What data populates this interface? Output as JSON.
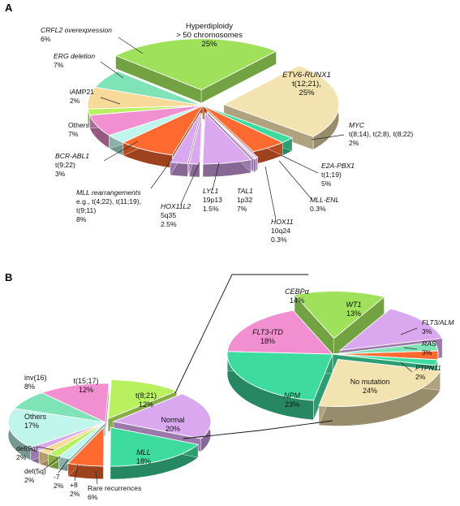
{
  "panels": [
    {
      "letter": "A"
    },
    {
      "letter": "B"
    }
  ],
  "colors": {
    "green": "#9fe15a",
    "yellow": "#f3e3b0",
    "teal": "#3ddc9e",
    "orange": "#ff6a30",
    "lilac": "#d9a8ef",
    "pink": "#f28fd0",
    "aqua": "#bff5ea",
    "mint": "#7fe3b7",
    "lime": "#b9f05f",
    "peach": "#f7d999"
  },
  "chart_data": [
    {
      "type": "pie",
      "panel": "A",
      "slices": [
        {
          "lines": [
            "Hyperdiploidy",
            "> 50 chromosomes",
            "25%"
          ],
          "value": 25,
          "color": "green"
        },
        {
          "lines": [
            "ETV6-RUNX1",
            "t(12;21),",
            "25%"
          ],
          "value": 25,
          "color": "yellow"
        },
        {
          "lines": [
            "MYC",
            "t(8;14), t(2;8), t(8;22)",
            "2%"
          ],
          "value": 2,
          "color": "teal"
        },
        {
          "lines": [
            "E2A-PBX1",
            "t(1;19)",
            "5%"
          ],
          "value": 5,
          "color": "orange"
        },
        {
          "lines": [
            "MLL-ENL",
            "0.3%"
          ],
          "value": 0.3,
          "color": "lilac"
        },
        {
          "lines": [
            "HOX11",
            "10q24",
            "0.3%"
          ],
          "value": 0.3,
          "color": "lilac"
        },
        {
          "lines": [
            "TAL1",
            "1p32",
            "7%"
          ],
          "value": 7,
          "color": "lilac"
        },
        {
          "lines": [
            "LYL1",
            "19p13",
            "1.5%"
          ],
          "value": 1.5,
          "color": "lilac"
        },
        {
          "lines": [
            "HOX11L2",
            "5q35",
            "2.5%"
          ],
          "value": 2.5,
          "color": "lilac"
        },
        {
          "lines": [
            "MLL rearrangements",
            "e.g., t(4;22), t(11;19),",
            "t(9;11)",
            "8%"
          ],
          "value": 8,
          "color": "orange"
        },
        {
          "lines": [
            "BCR-ABL1",
            "t(9;22)",
            "3%"
          ],
          "value": 3,
          "color": "aqua"
        },
        {
          "lines": [
            "Others",
            "7%"
          ],
          "value": 7,
          "color": "pink"
        },
        {
          "lines": [
            "iAMP21",
            "2%"
          ],
          "value": 2,
          "color": "lime"
        },
        {
          "lines": [
            "ERG deletion",
            "7%"
          ],
          "value": 7,
          "color": "peach"
        },
        {
          "lines": [
            "CRFL2 overexpression",
            "6%"
          ],
          "value": 6,
          "color": "mint"
        }
      ]
    },
    {
      "type": "pie",
      "panel": "B",
      "slices": [
        {
          "lines": [
            "t(8;21)",
            "12%"
          ],
          "value": 12,
          "color": "lime"
        },
        {
          "lines": [
            "Normal",
            "20%"
          ],
          "value": 20,
          "color": "lilac"
        },
        {
          "lines": [
            "MLL",
            "18%"
          ],
          "value": 18,
          "color": "teal"
        },
        {
          "lines": [
            "Rare recurrences",
            "6%"
          ],
          "value": 6,
          "color": "orange"
        },
        {
          "lines": [
            "+8",
            "2%"
          ],
          "value": 2,
          "color": "aqua"
        },
        {
          "lines": [
            "-7",
            "2%"
          ],
          "value": 2,
          "color": "lime"
        },
        {
          "lines": [
            "del(5q)",
            "2%"
          ],
          "value": 2,
          "color": "peach"
        },
        {
          "lines": [
            "del(9q)",
            "2%"
          ],
          "value": 2,
          "color": "lilac"
        },
        {
          "lines": [
            "Others",
            "17%"
          ],
          "value": 17,
          "color": "aqua"
        },
        {
          "lines": [
            "inv(16)",
            "8%"
          ],
          "value": 8,
          "color": "mint"
        },
        {
          "lines": [
            "t(15;17)",
            "12%"
          ],
          "value": 12,
          "color": "pink"
        }
      ]
    },
    {
      "type": "pie",
      "panel": "B-detail",
      "slices": [
        {
          "lines": [
            "CEBPα",
            "14%"
          ],
          "value": 14,
          "color": "green"
        },
        {
          "lines": [
            "WT1",
            "13%"
          ],
          "value": 13,
          "color": "lilac"
        },
        {
          "lines": [
            "FLT3/ALM",
            "3%"
          ],
          "value": 3,
          "color": "mint"
        },
        {
          "lines": [
            "RAS",
            "3%"
          ],
          "value": 3,
          "color": "orange"
        },
        {
          "lines": [
            "PTPN11",
            "2%"
          ],
          "value": 2,
          "color": "teal"
        },
        {
          "lines": [
            "No mutation",
            "24%"
          ],
          "value": 24,
          "color": "yellow"
        },
        {
          "lines": [
            "NPM",
            "23%"
          ],
          "value": 23,
          "color": "teal"
        },
        {
          "lines": [
            "FLT3-ITD",
            "18%"
          ],
          "value": 18,
          "color": "pink"
        }
      ]
    }
  ]
}
